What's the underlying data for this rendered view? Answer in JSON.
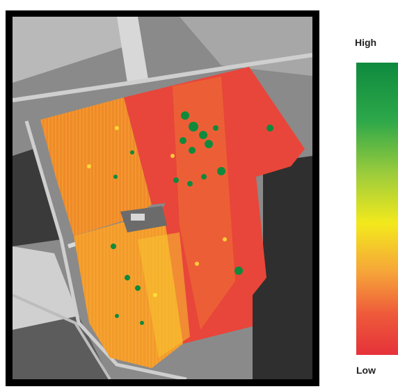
{
  "legend": {
    "high_label": "High",
    "low_label": "Low"
  },
  "colors": {
    "high": "#0e8a3e",
    "mid": "#f3e91c",
    "low": "#e5323a"
  },
  "image": {
    "description_icon": "aerial-field-vegetation-index-map"
  }
}
